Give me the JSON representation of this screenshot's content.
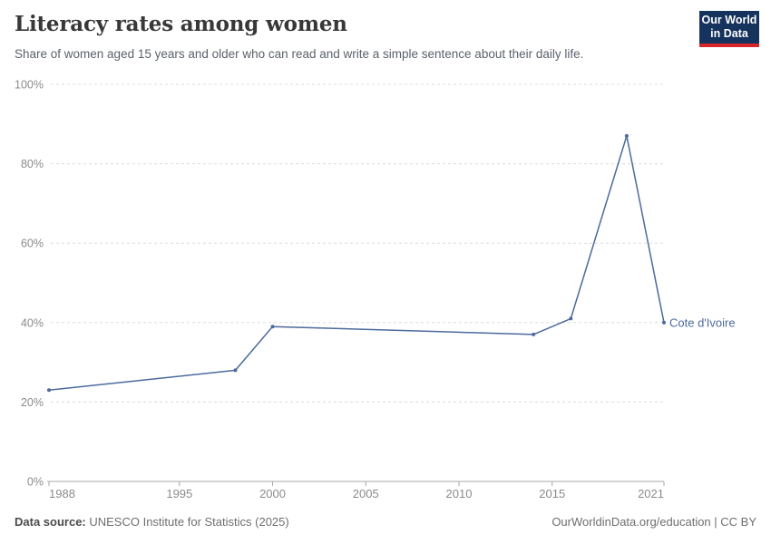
{
  "header": {
    "title": "Literacy rates among women",
    "subtitle": "Share of women aged 15 years and older who can read and write a simple sentence about their daily life.",
    "logo": {
      "line1": "Our World",
      "line2": "in Data",
      "bg_color": "#15335d",
      "accent_color": "#d8252c"
    }
  },
  "chart_data": {
    "type": "line",
    "title": "Literacy rates among women",
    "xlabel": "",
    "ylabel": "",
    "xlim": [
      1988,
      2021
    ],
    "ylim": [
      0,
      100
    ],
    "x_ticks": [
      1988,
      1995,
      2000,
      2005,
      2010,
      2015,
      2021
    ],
    "y_ticks": [
      0,
      20,
      40,
      60,
      80,
      100
    ],
    "y_tick_suffix": "%",
    "grid": "horizontal-dashed",
    "legend_position": "end-of-line-label",
    "series": [
      {
        "name": "Cote d'Ivoire",
        "color": "#4c6a9c",
        "years": [
          1988,
          1998,
          2000,
          2014,
          2016,
          2019,
          2021
        ],
        "values": [
          23,
          28,
          39,
          37,
          41,
          87,
          40
        ]
      }
    ]
  },
  "footer": {
    "source_label": "Data source:",
    "source_text": " UNESCO Institute for Statistics (2025)",
    "right_text": "OurWorldinData.org/education | CC BY"
  },
  "colors": {
    "series_blue": "#4c6a9c",
    "axis_text": "#8b8b8b",
    "gridline": "#dcdcdc",
    "axis_line": "#a8a8a8",
    "logo_navy": "#15335d",
    "logo_red": "#d8252c"
  }
}
